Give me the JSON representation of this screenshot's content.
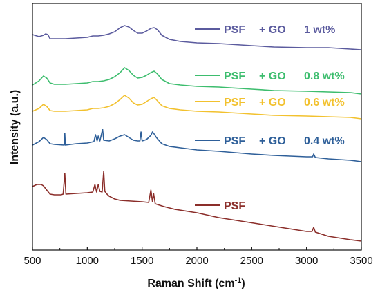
{
  "chart_data": {
    "type": "line",
    "title": "",
    "xlabel": "Raman Shift (cm",
    "xlabel_sup": "-1",
    "xlabel_close": ")",
    "ylabel": "Intensity (a.u.)",
    "xlim": [
      500,
      3500
    ],
    "x_ticks": [
      "500",
      "1000",
      "1500",
      "2000",
      "2500",
      "3000",
      "3500"
    ],
    "y_ticks_shown": false,
    "series": [
      {
        "name": "PSF  + GO   1 wt%",
        "color": "#5b5b9e",
        "points": [
          [
            500,
            45
          ],
          [
            560,
            48
          ],
          [
            600,
            46
          ],
          [
            620,
            44
          ],
          [
            640,
            45
          ],
          [
            660,
            51
          ],
          [
            700,
            51
          ],
          [
            800,
            51
          ],
          [
            900,
            50
          ],
          [
            1000,
            49
          ],
          [
            1050,
            47
          ],
          [
            1100,
            47
          ],
          [
            1150,
            46
          ],
          [
            1200,
            44
          ],
          [
            1250,
            41
          ],
          [
            1300,
            35
          ],
          [
            1340,
            32
          ],
          [
            1380,
            34
          ],
          [
            1420,
            39
          ],
          [
            1460,
            43
          ],
          [
            1500,
            43
          ],
          [
            1540,
            40
          ],
          [
            1580,
            36
          ],
          [
            1610,
            35
          ],
          [
            1640,
            38
          ],
          [
            1680,
            46
          ],
          [
            1750,
            52
          ],
          [
            1850,
            55
          ],
          [
            2000,
            57
          ],
          [
            2200,
            58
          ],
          [
            2500,
            61
          ],
          [
            2700,
            63
          ],
          [
            3000,
            64
          ],
          [
            3200,
            64
          ],
          [
            3400,
            66
          ],
          [
            3500,
            67
          ]
        ]
      },
      {
        "name": "PSF  + GO   0.8 wt%",
        "color": "#3dbd6e",
        "points": [
          [
            500,
            118
          ],
          [
            560,
            112
          ],
          [
            600,
            105
          ],
          [
            630,
            108
          ],
          [
            660,
            115
          ],
          [
            700,
            117
          ],
          [
            800,
            117
          ],
          [
            900,
            116
          ],
          [
            1000,
            115
          ],
          [
            1050,
            113
          ],
          [
            1100,
            113
          ],
          [
            1150,
            112
          ],
          [
            1200,
            110
          ],
          [
            1250,
            106
          ],
          [
            1300,
            100
          ],
          [
            1340,
            93
          ],
          [
            1380,
            97
          ],
          [
            1420,
            104
          ],
          [
            1460,
            108
          ],
          [
            1500,
            107
          ],
          [
            1540,
            104
          ],
          [
            1580,
            100
          ],
          [
            1610,
            98
          ],
          [
            1640,
            102
          ],
          [
            1680,
            110
          ],
          [
            1750,
            116
          ],
          [
            1850,
            118
          ],
          [
            2000,
            120
          ],
          [
            2200,
            121
          ],
          [
            2500,
            124
          ],
          [
            2700,
            126
          ],
          [
            3000,
            127
          ],
          [
            3200,
            128
          ],
          [
            3400,
            129
          ],
          [
            3500,
            131
          ]
        ]
      },
      {
        "name": "PSF  + GO   0.6 wt%",
        "color": "#f2c12e",
        "points": [
          [
            500,
            156
          ],
          [
            560,
            152
          ],
          [
            600,
            146
          ],
          [
            630,
            149
          ],
          [
            660,
            155
          ],
          [
            700,
            156
          ],
          [
            800,
            156
          ],
          [
            900,
            155
          ],
          [
            1000,
            154
          ],
          [
            1050,
            152
          ],
          [
            1100,
            152
          ],
          [
            1150,
            151
          ],
          [
            1200,
            149
          ],
          [
            1250,
            145
          ],
          [
            1300,
            139
          ],
          [
            1340,
            133
          ],
          [
            1380,
            137
          ],
          [
            1420,
            144
          ],
          [
            1460,
            147
          ],
          [
            1500,
            146
          ],
          [
            1540,
            142
          ],
          [
            1580,
            138
          ],
          [
            1610,
            136
          ],
          [
            1640,
            141
          ],
          [
            1680,
            148
          ],
          [
            1750,
            152
          ],
          [
            1850,
            154
          ],
          [
            2000,
            156
          ],
          [
            2200,
            157
          ],
          [
            2500,
            160
          ],
          [
            2700,
            162
          ],
          [
            3000,
            163
          ],
          [
            3200,
            164
          ],
          [
            3400,
            165
          ],
          [
            3500,
            167
          ]
        ]
      },
      {
        "name": "PSF  + GO   0.4 wt%",
        "color": "#2e5f99",
        "points": [
          [
            500,
            205
          ],
          [
            560,
            200
          ],
          [
            600,
            194
          ],
          [
            630,
            197
          ],
          [
            660,
            203
          ],
          [
            700,
            204
          ],
          [
            790,
            205
          ],
          [
            795,
            188
          ],
          [
            800,
            205
          ],
          [
            900,
            203
          ],
          [
            1000,
            202
          ],
          [
            1060,
            200
          ],
          [
            1075,
            190
          ],
          [
            1090,
            199
          ],
          [
            1100,
            192
          ],
          [
            1115,
            199
          ],
          [
            1140,
            182
          ],
          [
            1150,
            198
          ],
          [
            1200,
            199
          ],
          [
            1250,
            196
          ],
          [
            1300,
            192
          ],
          [
            1340,
            190
          ],
          [
            1380,
            194
          ],
          [
            1420,
            198
          ],
          [
            1460,
            199
          ],
          [
            1480,
            199
          ],
          [
            1490,
            186
          ],
          [
            1500,
            199
          ],
          [
            1540,
            197
          ],
          [
            1580,
            191
          ],
          [
            1595,
            186
          ],
          [
            1610,
            189
          ],
          [
            1630,
            194
          ],
          [
            1680,
            203
          ],
          [
            1750,
            207
          ],
          [
            1850,
            209
          ],
          [
            2000,
            212
          ],
          [
            2200,
            214
          ],
          [
            2500,
            218
          ],
          [
            2700,
            220
          ],
          [
            3000,
            222
          ],
          [
            3055,
            222
          ],
          [
            3065,
            218
          ],
          [
            3080,
            223
          ],
          [
            3200,
            225
          ],
          [
            3400,
            227
          ],
          [
            3500,
            229
          ]
        ]
      },
      {
        "name": "PSF",
        "color": "#8b2e2a",
        "points": [
          [
            500,
            265
          ],
          [
            540,
            262
          ],
          [
            580,
            262
          ],
          [
            600,
            264
          ],
          [
            630,
            270
          ],
          [
            660,
            276
          ],
          [
            700,
            277
          ],
          [
            760,
            277
          ],
          [
            780,
            276
          ],
          [
            795,
            246
          ],
          [
            805,
            276
          ],
          [
            900,
            275
          ],
          [
            1000,
            274
          ],
          [
            1050,
            273
          ],
          [
            1070,
            262
          ],
          [
            1085,
            273
          ],
          [
            1100,
            262
          ],
          [
            1115,
            272
          ],
          [
            1135,
            273
          ],
          [
            1150,
            243
          ],
          [
            1160,
            272
          ],
          [
            1180,
            276
          ],
          [
            1200,
            279
          ],
          [
            1250,
            283
          ],
          [
            1300,
            285
          ],
          [
            1400,
            286
          ],
          [
            1500,
            287
          ],
          [
            1560,
            288
          ],
          [
            1580,
            270
          ],
          [
            1595,
            287
          ],
          [
            1605,
            275
          ],
          [
            1620,
            290
          ],
          [
            1700,
            294
          ],
          [
            1800,
            298
          ],
          [
            2000,
            303
          ],
          [
            2200,
            310
          ],
          [
            2400,
            315
          ],
          [
            2600,
            320
          ],
          [
            2800,
            325
          ],
          [
            3000,
            330
          ],
          [
            3050,
            330
          ],
          [
            3065,
            324
          ],
          [
            3080,
            331
          ],
          [
            3200,
            337
          ],
          [
            3400,
            342
          ],
          [
            3500,
            344
          ]
        ]
      }
    ],
    "legend": [
      {
        "label_a": "PSF",
        "label_b": "+ GO",
        "label_c": "1 wt%",
        "color": "#5b5b9e"
      },
      {
        "label_a": "PSF",
        "label_b": "+ GO",
        "label_c": "0.8 wt%",
        "color": "#3dbd6e"
      },
      {
        "label_a": "PSF",
        "label_b": "+ GO",
        "label_c": "0.6 wt%",
        "color": "#f2c12e"
      },
      {
        "label_a": "PSF",
        "label_b": "+ GO",
        "label_c": "0.4 wt%",
        "color": "#2e5f99"
      },
      {
        "label_a": "PSF",
        "label_b": "",
        "label_c": "",
        "color": "#8b2e2a"
      }
    ],
    "grid": false,
    "legend_placement": "inline-right"
  }
}
